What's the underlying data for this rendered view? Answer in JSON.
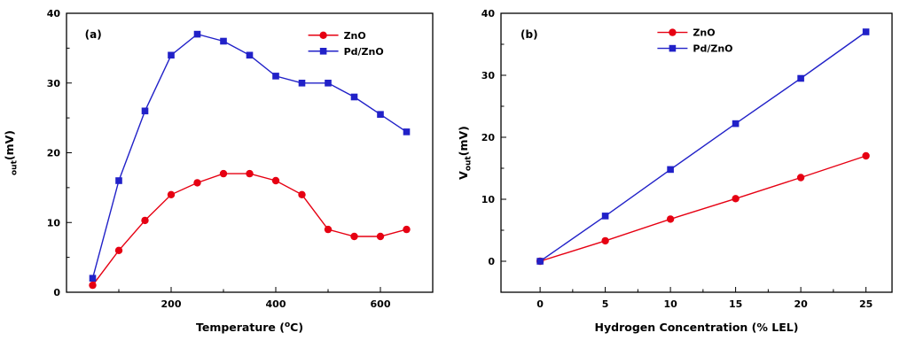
{
  "figure": {
    "background": "#ffffff",
    "colors": {
      "zno": "#e60012",
      "pdzno": "#2121c8",
      "axis": "#000000"
    }
  },
  "chart_data": [
    {
      "type": "line",
      "panel_label": "(a)",
      "xlabel_parts": [
        {
          "t": "Temperature ("
        },
        {
          "t": "o",
          "sup": true
        },
        {
          "t": "C)"
        }
      ],
      "ylabel_parts": [
        {
          "t": "out",
          "sub": true
        },
        {
          "t": "(mV)"
        }
      ],
      "xlim": [
        0,
        700
      ],
      "ylim": [
        0,
        40
      ],
      "xticks": [
        200,
        400,
        600
      ],
      "xminor": [
        100,
        300,
        500,
        700
      ],
      "yticks": [
        0,
        10,
        20,
        30,
        40
      ],
      "yminor": [
        5,
        15,
        25,
        35
      ],
      "grid": false,
      "legend_pos": {
        "x_frac": 0.66,
        "y_frac": 0.05
      },
      "panel_label_pos": {
        "x_frac": 0.05,
        "y_frac": 0.05
      },
      "margins": {
        "l": 75,
        "r": 24,
        "t": 15,
        "b": 72
      },
      "series": [
        {
          "name": "ZnO",
          "color": "#e60012",
          "marker": "circle",
          "x": [
            50,
            100,
            150,
            200,
            250,
            300,
            350,
            400,
            450,
            500,
            550,
            600,
            650
          ],
          "y": [
            1,
            6,
            10.3,
            14,
            15.7,
            17,
            17,
            16,
            14,
            9,
            8,
            8,
            9
          ]
        },
        {
          "name": "Pd/ZnO",
          "color": "#2121c8",
          "marker": "square",
          "x": [
            50,
            100,
            150,
            200,
            250,
            300,
            350,
            400,
            450,
            500,
            550,
            600,
            650
          ],
          "y": [
            2,
            16,
            26,
            34,
            37,
            36,
            34,
            31,
            30,
            30,
            28,
            25.5,
            23
          ]
        }
      ]
    },
    {
      "type": "line",
      "panel_label": "(b)",
      "xlabel_parts": [
        {
          "t": "Hydrogen Concentration (% LEL)"
        }
      ],
      "ylabel_parts": [
        {
          "t": "V"
        },
        {
          "t": "out",
          "sub": true
        },
        {
          "t": "(mV)"
        }
      ],
      "xlim": [
        -3,
        27
      ],
      "ylim": [
        -5,
        40
      ],
      "xticks": [
        0,
        5,
        10,
        15,
        20,
        25
      ],
      "xminor": [
        2.5,
        7.5,
        12.5,
        17.5,
        22.5
      ],
      "yticks": [
        0,
        10,
        20,
        30,
        40
      ],
      "yminor": [
        -5,
        5,
        15,
        25,
        35
      ],
      "grid": false,
      "legend_pos": {
        "x_frac": 0.4,
        "y_frac": 0.04
      },
      "panel_label_pos": {
        "x_frac": 0.05,
        "y_frac": 0.05
      },
      "margins": {
        "l": 53,
        "r": 18,
        "t": 15,
        "b": 72
      },
      "series": [
        {
          "name": "ZnO",
          "color": "#e60012",
          "marker": "circle",
          "x": [
            0,
            5,
            10,
            15,
            20,
            25
          ],
          "y": [
            0,
            3.3,
            6.8,
            10.1,
            13.5,
            17
          ]
        },
        {
          "name": "Pd/ZnO",
          "color": "#2121c8",
          "marker": "square",
          "x": [
            0,
            5,
            10,
            15,
            20,
            25
          ],
          "y": [
            0,
            7.3,
            14.8,
            22.2,
            29.5,
            37
          ]
        }
      ]
    }
  ]
}
